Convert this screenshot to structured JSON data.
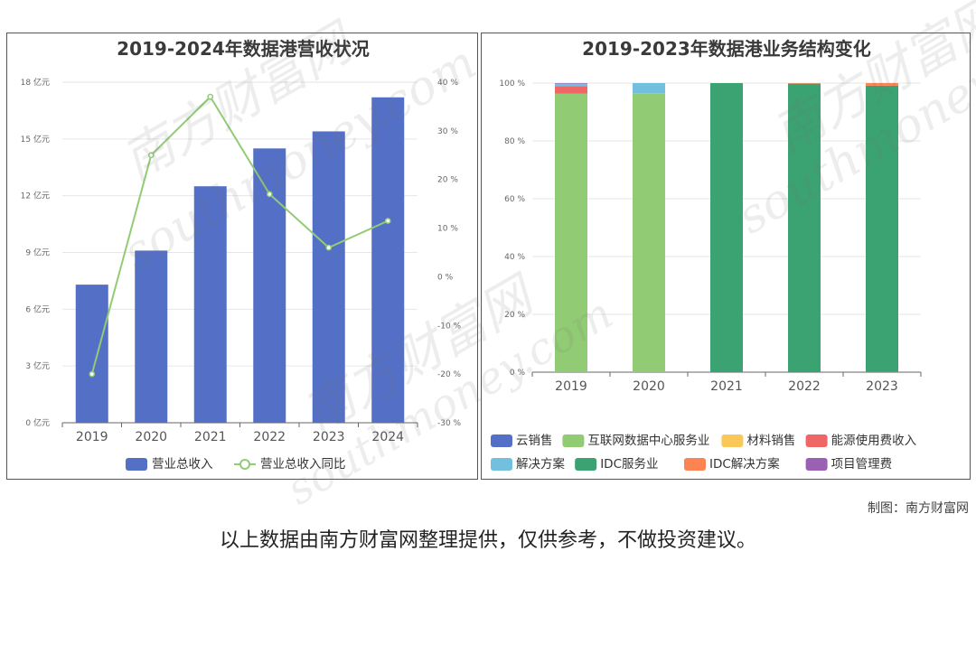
{
  "chart_data": [
    {
      "type": "bar",
      "title": "2019-2024年数据港营收状况",
      "categories": [
        "2019",
        "2020",
        "2021",
        "2022",
        "2023",
        "2024"
      ],
      "y_left": {
        "ticks": [
          0,
          3,
          6,
          9,
          12,
          15,
          18
        ],
        "tick_suffix": " 亿元",
        "ylim": [
          0,
          18
        ]
      },
      "y_right": {
        "ticks": [
          -30,
          -20,
          -10,
          0,
          10,
          20,
          30,
          40
        ],
        "tick_suffix": " %",
        "ylim": [
          -30,
          40
        ]
      },
      "series": [
        {
          "name": "营业总收入",
          "kind": "bar",
          "axis": "left",
          "color": "#5470c6",
          "values": [
            7.3,
            9.1,
            12.5,
            14.5,
            15.4,
            17.2
          ]
        },
        {
          "name": "营业总收入同比",
          "kind": "line",
          "axis": "right",
          "color": "#91cc75",
          "values": [
            -20.0,
            25.0,
            37.0,
            17.0,
            6.0,
            11.5
          ]
        }
      ],
      "grid": true,
      "legend_position": "bottom"
    },
    {
      "type": "bar",
      "stacked": true,
      "title": "2019-2023年数据港业务结构变化",
      "categories": [
        "2019",
        "2020",
        "2021",
        "2022",
        "2023"
      ],
      "y_left": {
        "ticks": [
          0,
          20,
          40,
          60,
          80,
          100
        ],
        "tick_suffix": " %",
        "ylim": [
          0,
          100
        ]
      },
      "series": [
        {
          "name": "云销售",
          "color": "#5470c6",
          "values": [
            0,
            0,
            0,
            0,
            0.2
          ]
        },
        {
          "name": "互联网数据中心服务业",
          "color": "#91cc75",
          "values": [
            96.4,
            96.5,
            0,
            0,
            0
          ]
        },
        {
          "name": "材料销售",
          "color": "#fac858",
          "values": [
            0,
            0,
            0,
            0,
            0
          ]
        },
        {
          "name": "能源使用费收入",
          "color": "#ee6666",
          "values": [
            2.6,
            0,
            0,
            0,
            0
          ]
        },
        {
          "name": "解决方案",
          "color": "#73c0de",
          "values": [
            0.8,
            3.5,
            0,
            0,
            0
          ]
        },
        {
          "name": "IDC服务业",
          "color": "#3ba272",
          "values": [
            0,
            0,
            100,
            99.8,
            98.9
          ]
        },
        {
          "name": "IDC解决方案",
          "color": "#fc8452",
          "values": [
            0,
            0,
            0,
            0.2,
            0.9
          ]
        },
        {
          "name": "项目管理费",
          "color": "#9a60b4",
          "values": [
            0.2,
            0,
            0,
            0,
            0
          ]
        }
      ],
      "grid": true,
      "legend_position": "bottom"
    }
  ],
  "credit": "制图：南方财富网",
  "footnote": "以上数据由南方财富网整理提供，仅供参考，不做投资建议。",
  "watermark": {
    "cn": "南方财富网",
    "en": "southmoney.com"
  }
}
